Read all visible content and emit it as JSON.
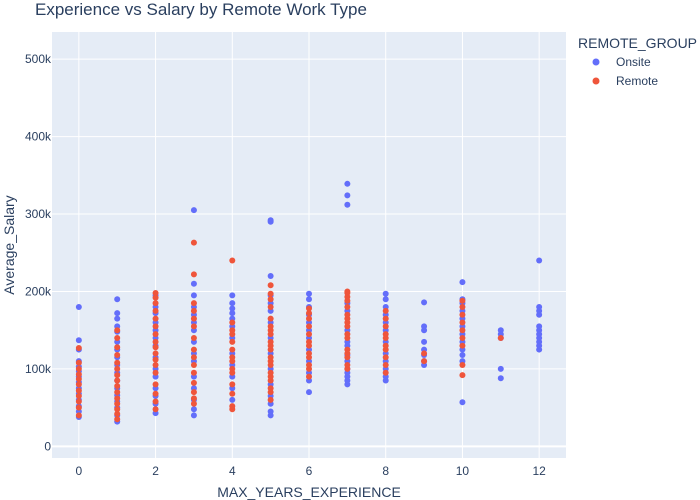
{
  "chart_data": {
    "type": "scatter",
    "title": "Experience vs Salary by Remote Work Type",
    "xlabel": "MAX_YEARS_EXPERIENCE",
    "ylabel": "Average_Salary",
    "xlim": [
      -0.7,
      12.7
    ],
    "ylim": [
      -15000,
      535000
    ],
    "x_ticks": [
      0,
      2,
      4,
      6,
      8,
      10,
      12
    ],
    "x_tick_labels": [
      "0",
      "2",
      "4",
      "6",
      "8",
      "10",
      "12"
    ],
    "y_ticks": [
      0,
      100000,
      200000,
      300000,
      400000,
      500000
    ],
    "y_tick_labels": [
      "0",
      "100k",
      "200k",
      "300k",
      "400k",
      "500k"
    ],
    "grid": true,
    "legend_title": "REMOTE_GROUP",
    "legend_position": "top-right, outside plot",
    "series": [
      {
        "name": "Onsite",
        "color": "#636efa",
        "points": [
          [
            0,
            38000
          ],
          [
            0,
            45000
          ],
          [
            0,
            52000
          ],
          [
            0,
            60000
          ],
          [
            0,
            68000
          ],
          [
            0,
            75000
          ],
          [
            0,
            83000
          ],
          [
            0,
            90000
          ],
          [
            0,
            97000
          ],
          [
            0,
            103000
          ],
          [
            0,
            110000
          ],
          [
            0,
            125000
          ],
          [
            0,
            137000
          ],
          [
            0,
            180000
          ],
          [
            1,
            32000
          ],
          [
            1,
            40000
          ],
          [
            1,
            50000
          ],
          [
            1,
            58000
          ],
          [
            1,
            66000
          ],
          [
            1,
            75000
          ],
          [
            1,
            85000
          ],
          [
            1,
            95000
          ],
          [
            1,
            105000
          ],
          [
            1,
            115000
          ],
          [
            1,
            125000
          ],
          [
            1,
            135000
          ],
          [
            1,
            148000
          ],
          [
            1,
            155000
          ],
          [
            1,
            165000
          ],
          [
            1,
            172000
          ],
          [
            1,
            190000
          ],
          [
            2,
            43000
          ],
          [
            2,
            55000
          ],
          [
            2,
            65000
          ],
          [
            2,
            75000
          ],
          [
            2,
            90000
          ],
          [
            2,
            100000
          ],
          [
            2,
            115000
          ],
          [
            2,
            130000
          ],
          [
            2,
            140000
          ],
          [
            2,
            150000
          ],
          [
            2,
            160000
          ],
          [
            2,
            172000
          ],
          [
            2,
            180000
          ],
          [
            2,
            195000
          ],
          [
            3,
            40000
          ],
          [
            3,
            48000
          ],
          [
            3,
            60000
          ],
          [
            3,
            75000
          ],
          [
            3,
            90000
          ],
          [
            3,
            110000
          ],
          [
            3,
            120000
          ],
          [
            3,
            135000
          ],
          [
            3,
            150000
          ],
          [
            3,
            160000
          ],
          [
            3,
            170000
          ],
          [
            3,
            180000
          ],
          [
            3,
            195000
          ],
          [
            3,
            210000
          ],
          [
            3,
            305000
          ],
          [
            4,
            60000
          ],
          [
            4,
            75000
          ],
          [
            4,
            90000
          ],
          [
            4,
            105000
          ],
          [
            4,
            120000
          ],
          [
            4,
            140000
          ],
          [
            4,
            155000
          ],
          [
            4,
            165000
          ],
          [
            4,
            172000
          ],
          [
            4,
            178000
          ],
          [
            4,
            185000
          ],
          [
            4,
            195000
          ],
          [
            5,
            40000
          ],
          [
            5,
            45000
          ],
          [
            5,
            55000
          ],
          [
            5,
            65000
          ],
          [
            5,
            80000
          ],
          [
            5,
            100000
          ],
          [
            5,
            120000
          ],
          [
            5,
            140000
          ],
          [
            5,
            160000
          ],
          [
            5,
            175000
          ],
          [
            5,
            185000
          ],
          [
            5,
            195000
          ],
          [
            5,
            220000
          ],
          [
            5,
            290000
          ],
          [
            5,
            292000
          ],
          [
            6,
            70000
          ],
          [
            6,
            85000
          ],
          [
            6,
            95000
          ],
          [
            6,
            110000
          ],
          [
            6,
            125000
          ],
          [
            6,
            140000
          ],
          [
            6,
            150000
          ],
          [
            6,
            160000
          ],
          [
            6,
            170000
          ],
          [
            6,
            180000
          ],
          [
            6,
            190000
          ],
          [
            6,
            197000
          ],
          [
            7,
            80000
          ],
          [
            7,
            85000
          ],
          [
            7,
            90000
          ],
          [
            7,
            95000
          ],
          [
            7,
            100000
          ],
          [
            7,
            110000
          ],
          [
            7,
            118000
          ],
          [
            7,
            130000
          ],
          [
            7,
            135000
          ],
          [
            7,
            150000
          ],
          [
            7,
            175000
          ],
          [
            7,
            185000
          ],
          [
            7,
            312000
          ],
          [
            7,
            324000
          ],
          [
            7,
            339000
          ],
          [
            8,
            85000
          ],
          [
            8,
            90000
          ],
          [
            8,
            100000
          ],
          [
            8,
            110000
          ],
          [
            8,
            120000
          ],
          [
            8,
            135000
          ],
          [
            8,
            150000
          ],
          [
            8,
            160000
          ],
          [
            8,
            170000
          ],
          [
            8,
            180000
          ],
          [
            8,
            190000
          ],
          [
            8,
            197000
          ],
          [
            9,
            105000
          ],
          [
            9,
            110000
          ],
          [
            9,
            118000
          ],
          [
            9,
            125000
          ],
          [
            9,
            135000
          ],
          [
            9,
            150000
          ],
          [
            9,
            155000
          ],
          [
            9,
            186000
          ],
          [
            10,
            57000
          ],
          [
            10,
            110000
          ],
          [
            10,
            118000
          ],
          [
            10,
            125000
          ],
          [
            10,
            135000
          ],
          [
            10,
            145000
          ],
          [
            10,
            155000
          ],
          [
            10,
            165000
          ],
          [
            10,
            175000
          ],
          [
            10,
            185000
          ],
          [
            10,
            190000
          ],
          [
            10,
            212000
          ],
          [
            11,
            88000
          ],
          [
            11,
            100000
          ],
          [
            11,
            140000
          ],
          [
            11,
            145000
          ],
          [
            11,
            150000
          ],
          [
            12,
            125000
          ],
          [
            12,
            130000
          ],
          [
            12,
            135000
          ],
          [
            12,
            140000
          ],
          [
            12,
            145000
          ],
          [
            12,
            150000
          ],
          [
            12,
            155000
          ],
          [
            12,
            170000
          ],
          [
            12,
            175000
          ],
          [
            12,
            180000
          ],
          [
            12,
            240000
          ]
        ]
      },
      {
        "name": "Remote",
        "color": "#ef553b",
        "points": [
          [
            0,
            40000
          ],
          [
            0,
            50000
          ],
          [
            0,
            58000
          ],
          [
            0,
            65000
          ],
          [
            0,
            72000
          ],
          [
            0,
            80000
          ],
          [
            0,
            87000
          ],
          [
            0,
            93000
          ],
          [
            0,
            100000
          ],
          [
            0,
            108000
          ],
          [
            0,
            127000
          ],
          [
            1,
            35000
          ],
          [
            1,
            42000
          ],
          [
            1,
            48000
          ],
          [
            1,
            55000
          ],
          [
            1,
            62000
          ],
          [
            1,
            70000
          ],
          [
            1,
            78000
          ],
          [
            1,
            85000
          ],
          [
            1,
            92000
          ],
          [
            1,
            100000
          ],
          [
            1,
            108000
          ],
          [
            1,
            118000
          ],
          [
            1,
            128000
          ],
          [
            1,
            140000
          ],
          [
            1,
            150000
          ],
          [
            2,
            48000
          ],
          [
            2,
            58000
          ],
          [
            2,
            68000
          ],
          [
            2,
            80000
          ],
          [
            2,
            95000
          ],
          [
            2,
            105000
          ],
          [
            2,
            112000
          ],
          [
            2,
            120000
          ],
          [
            2,
            128000
          ],
          [
            2,
            135000
          ],
          [
            2,
            145000
          ],
          [
            2,
            155000
          ],
          [
            2,
            165000
          ],
          [
            2,
            175000
          ],
          [
            2,
            185000
          ],
          [
            2,
            192000
          ],
          [
            2,
            198000
          ],
          [
            3,
            55000
          ],
          [
            3,
            62000
          ],
          [
            3,
            70000
          ],
          [
            3,
            82000
          ],
          [
            3,
            95000
          ],
          [
            3,
            105000
          ],
          [
            3,
            115000
          ],
          [
            3,
            125000
          ],
          [
            3,
            140000
          ],
          [
            3,
            155000
          ],
          [
            3,
            165000
          ],
          [
            3,
            175000
          ],
          [
            3,
            185000
          ],
          [
            3,
            222000
          ],
          [
            3,
            263000
          ],
          [
            4,
            48000
          ],
          [
            4,
            52000
          ],
          [
            4,
            68000
          ],
          [
            4,
            80000
          ],
          [
            4,
            95000
          ],
          [
            4,
            100000
          ],
          [
            4,
            110000
          ],
          [
            4,
            115000
          ],
          [
            4,
            125000
          ],
          [
            4,
            135000
          ],
          [
            4,
            145000
          ],
          [
            4,
            150000
          ],
          [
            4,
            160000
          ],
          [
            4,
            240000
          ],
          [
            5,
            60000
          ],
          [
            5,
            70000
          ],
          [
            5,
            75000
          ],
          [
            5,
            85000
          ],
          [
            5,
            90000
          ],
          [
            5,
            95000
          ],
          [
            5,
            105000
          ],
          [
            5,
            110000
          ],
          [
            5,
            115000
          ],
          [
            5,
            125000
          ],
          [
            5,
            130000
          ],
          [
            5,
            135000
          ],
          [
            5,
            145000
          ],
          [
            5,
            150000
          ],
          [
            5,
            155000
          ],
          [
            5,
            165000
          ],
          [
            5,
            180000
          ],
          [
            5,
            190000
          ],
          [
            5,
            197000
          ],
          [
            5,
            208000
          ],
          [
            6,
            90000
          ],
          [
            6,
            100000
          ],
          [
            6,
            105000
          ],
          [
            6,
            115000
          ],
          [
            6,
            120000
          ],
          [
            6,
            130000
          ],
          [
            6,
            135000
          ],
          [
            6,
            145000
          ],
          [
            6,
            155000
          ],
          [
            6,
            165000
          ],
          [
            6,
            172000
          ],
          [
            6,
            178000
          ],
          [
            7,
            100000
          ],
          [
            7,
            105000
          ],
          [
            7,
            115000
          ],
          [
            7,
            120000
          ],
          [
            7,
            125000
          ],
          [
            7,
            140000
          ],
          [
            7,
            145000
          ],
          [
            7,
            155000
          ],
          [
            7,
            160000
          ],
          [
            7,
            165000
          ],
          [
            7,
            170000
          ],
          [
            7,
            180000
          ],
          [
            7,
            188000
          ],
          [
            7,
            193000
          ],
          [
            7,
            198000
          ],
          [
            7,
            200000
          ],
          [
            8,
            95000
          ],
          [
            8,
            105000
          ],
          [
            8,
            115000
          ],
          [
            8,
            125000
          ],
          [
            8,
            130000
          ],
          [
            8,
            140000
          ],
          [
            8,
            145000
          ],
          [
            8,
            155000
          ],
          [
            8,
            165000
          ],
          [
            8,
            175000
          ],
          [
            9,
            110000
          ],
          [
            9,
            120000
          ],
          [
            10,
            92000
          ],
          [
            10,
            105000
          ],
          [
            10,
            130000
          ],
          [
            10,
            140000
          ],
          [
            10,
            150000
          ],
          [
            10,
            160000
          ],
          [
            10,
            170000
          ],
          [
            10,
            180000
          ],
          [
            10,
            188000
          ],
          [
            11,
            140000
          ]
        ]
      }
    ]
  }
}
